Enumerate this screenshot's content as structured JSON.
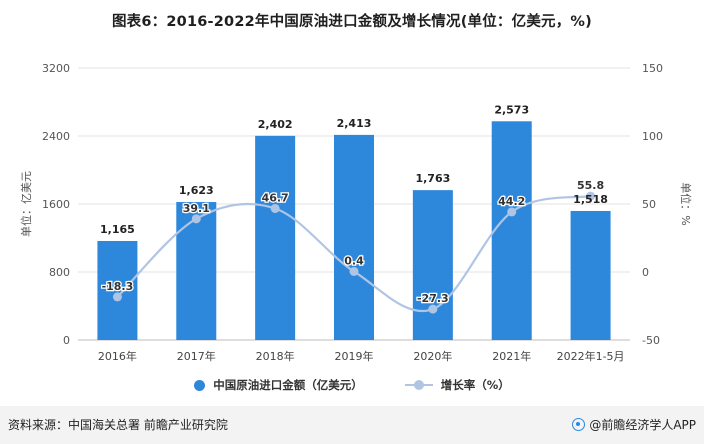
{
  "title": "图表6：2016-2022年中国原油进口金额及增长情况(单位：亿美元，%)",
  "chart_data": {
    "type": "bar",
    "categories": [
      "2016年",
      "2017年",
      "2018年",
      "2019年",
      "2020年",
      "2021年",
      "2022年1-5月"
    ],
    "series": [
      {
        "name": "中国原油进口金额（亿美元）",
        "type": "bar",
        "axis": "left",
        "values": [
          1165,
          1623,
          2402,
          2413,
          1763,
          2573,
          1518
        ],
        "labels": [
          "1,165",
          "1,623",
          "2,402",
          "2,413",
          "1,763",
          "2,573",
          "1,518"
        ]
      },
      {
        "name": "增长率（%）",
        "type": "line",
        "axis": "right",
        "values": [
          -18.3,
          39.1,
          46.7,
          0.4,
          -27.3,
          44.2,
          55.8
        ],
        "labels": [
          "-18.3",
          "39.1",
          "46.7",
          "0.4",
          "-27.3",
          "44.2",
          "55.8"
        ]
      }
    ],
    "ylabel": "单位：亿美元",
    "y2label": "单位：%",
    "ylim": [
      0,
      3200
    ],
    "yticks": [
      "0",
      "800",
      "1600",
      "2400",
      "3200"
    ],
    "y2lim": [
      -50,
      150
    ],
    "y2ticks": [
      "-50",
      "0",
      "50",
      "100",
      "150"
    ],
    "grid": true,
    "legend_position": "bottom",
    "colors": {
      "bar": "#2d88dc",
      "line": "#b0c4e4"
    }
  },
  "legend": {
    "bar_label": "中国原油进口金额（亿美元）",
    "line_label": "增长率（%）"
  },
  "footer": {
    "source": "资料来源：中国海关总署 前瞻产业研究院",
    "brand": "@前瞻经济学人APP"
  }
}
